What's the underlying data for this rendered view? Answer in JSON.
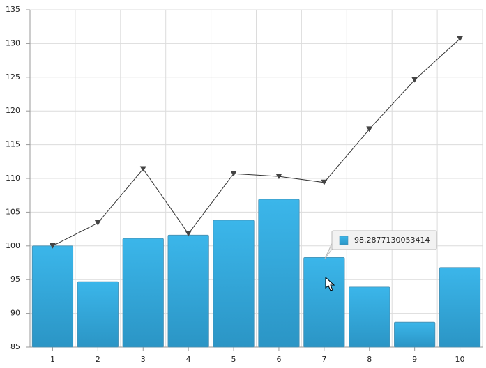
{
  "chart_data": {
    "type": "combo",
    "categories": [
      "1",
      "2",
      "3",
      "4",
      "5",
      "6",
      "7",
      "8",
      "9",
      "10"
    ],
    "series": [
      {
        "type": "bar",
        "color": "#36ace0",
        "values": [
          100,
          94.7,
          101.1,
          101.6,
          103.8,
          106.9,
          98.2877130053414,
          93.9,
          88.7,
          96.8
        ]
      },
      {
        "type": "line",
        "color": "#333333",
        "values": [
          100,
          103.4,
          111.4,
          101.8,
          110.7,
          110.3,
          109.4,
          117.3,
          124.6,
          130.7
        ]
      }
    ],
    "ylim": [
      85,
      135
    ],
    "yticks": [
      85,
      90,
      95,
      100,
      105,
      110,
      115,
      120,
      125,
      130,
      135
    ],
    "grid": true
  }
}
